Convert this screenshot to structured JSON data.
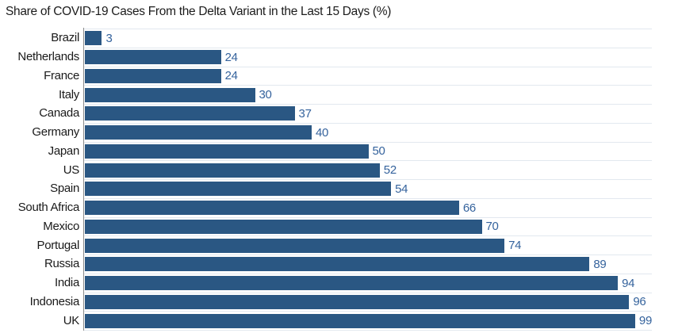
{
  "chart_data": {
    "type": "bar",
    "orientation": "horizontal",
    "title": "Share of COVID-19 Cases From the Delta Variant in the Last 15 Days (%)",
    "categories": [
      "Brazil",
      "Netherlands",
      "France",
      "Italy",
      "Canada",
      "Germany",
      "Japan",
      "US",
      "Spain",
      "South Africa",
      "Mexico",
      "Portugal",
      "Russia",
      "India",
      "Indonesia",
      "UK"
    ],
    "values": [
      3,
      24,
      24,
      30,
      37,
      40,
      50,
      52,
      54,
      66,
      70,
      74,
      89,
      94,
      96,
      99
    ],
    "xlabel": "",
    "ylabel": "",
    "xlim": [
      0,
      100
    ],
    "value_labels_shown": true,
    "legend": "none",
    "grid": "faint horizontal row dividers",
    "colors": {
      "bar_fill": "#2a5783",
      "value_label": "#35639d",
      "category_label": "#1a1a1a",
      "title": "#1c1c1c",
      "axis_line": "#8c8c8c",
      "row_divider": "#e2e8ef",
      "background": "#ffffff"
    }
  }
}
